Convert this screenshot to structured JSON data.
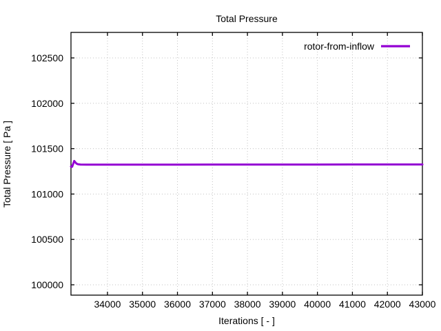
{
  "window": {
    "background": "#ffffff"
  },
  "chart_data": {
    "type": "line",
    "title": "Total Pressure",
    "xlabel": "Iterations [ - ]",
    "ylabel": "Total Pressure [ Pa ]",
    "xlim": [
      32957,
      43000
    ],
    "ylim": [
      99886,
      102781
    ],
    "xticks": [
      34000,
      35000,
      36000,
      37000,
      38000,
      39000,
      40000,
      41000,
      42000,
      43000
    ],
    "yticks": [
      100000,
      100500,
      101000,
      101500,
      102000,
      102500
    ],
    "grid": true,
    "legend_position": "top-right-inside",
    "legend": {
      "entries": [
        {
          "label": "rotor-from-inflow",
          "color": "#9400d3"
        }
      ]
    },
    "series": [
      {
        "name": "rotor-from-inflow",
        "color": "#9400d3",
        "x": [
          32957,
          32990,
          33015,
          33050,
          33080,
          33115,
          33155,
          33230,
          33400,
          34000,
          35000,
          36000,
          37000,
          38000,
          39000,
          40000,
          41000,
          42000,
          43000
        ],
        "y": [
          101304,
          101300,
          101327,
          101365,
          101351,
          101336,
          101329,
          101325,
          101324,
          101324,
          101324,
          101324,
          101325,
          101325,
          101325,
          101325,
          101326,
          101326,
          101326
        ]
      }
    ],
    "colors": {
      "grid": "#c0c0c0",
      "axis": "#000000",
      "text": "#000000"
    }
  }
}
